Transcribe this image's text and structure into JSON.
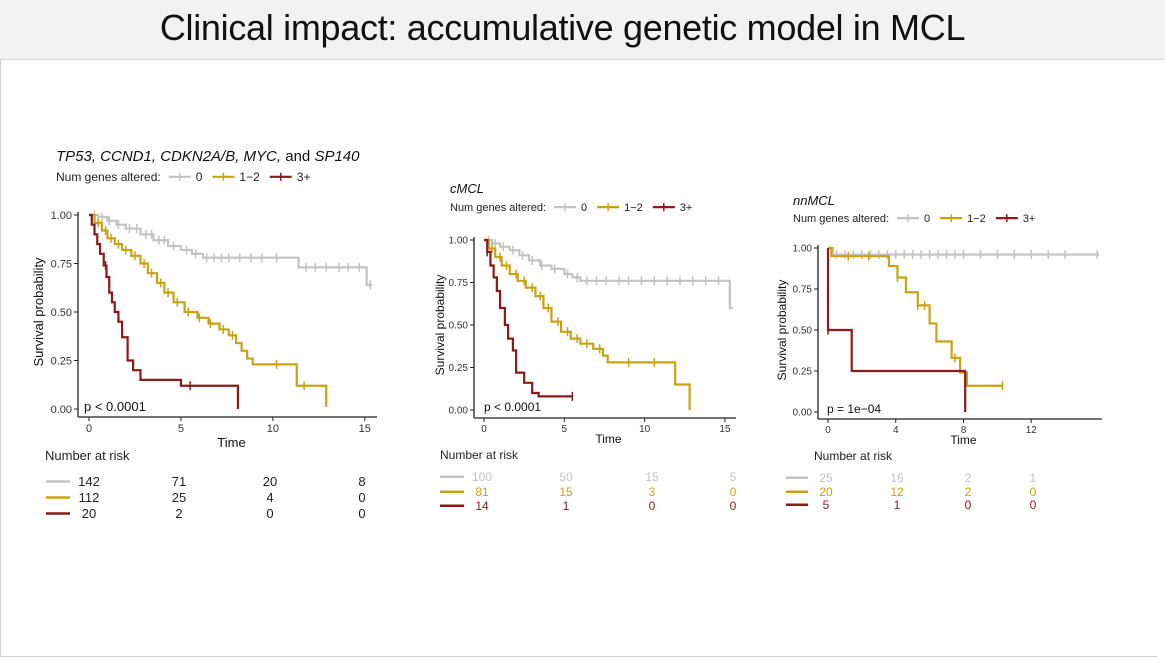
{
  "slide": {
    "title": "Clinical impact: accumulative genetic model in MCL"
  },
  "colors": {
    "g0": "#c3c3c3",
    "g12": "#c8a414",
    "g3": "#8b1a1a",
    "axis": "#222222"
  },
  "chart_data": [
    {
      "type": "line",
      "id": "all",
      "title_parts": [
        {
          "t": "TP53, CCND1, CDKN2A/B, MYC,",
          "italic": true
        },
        {
          "t": " and ",
          "italic": false
        },
        {
          "t": "SP140",
          "italic": true
        }
      ],
      "legend_title": "Num genes altered:",
      "legend_labels": [
        "0",
        "1−2",
        "3+"
      ],
      "xlabel": "Time",
      "ylabel": "Survival probability",
      "xlim": [
        0,
        15.5
      ],
      "ylim": [
        0,
        1
      ],
      "xticks": [
        0,
        5,
        10,
        15
      ],
      "yticks": [
        "0.00",
        "0.25",
        "0.50",
        "0.75",
        "1.00"
      ],
      "pvalue": "p < 0.0001",
      "risk_title": "Number at risk",
      "risk_times": [
        0,
        5,
        10,
        15
      ],
      "risk_rows": [
        [
          "142",
          "71",
          "20",
          "8"
        ],
        [
          "112",
          "25",
          "4",
          "0"
        ],
        [
          "20",
          "2",
          "0",
          "0"
        ]
      ],
      "series": [
        {
          "name": "0",
          "color_key": "g0",
          "steps": [
            [
              0,
              1
            ],
            [
              0.5,
              0.99
            ],
            [
              1,
              0.97
            ],
            [
              1.5,
              0.95
            ],
            [
              2,
              0.93
            ],
            [
              2.8,
              0.9
            ],
            [
              3.5,
              0.87
            ],
            [
              4.3,
              0.84
            ],
            [
              5,
              0.82
            ],
            [
              5.6,
              0.8
            ],
            [
              6.2,
              0.78
            ],
            [
              7.3,
              0.78
            ],
            [
              8,
              0.78
            ],
            [
              9,
              0.78
            ],
            [
              11.3,
              0.78
            ],
            [
              11.4,
              0.73
            ],
            [
              15,
              0.73
            ],
            [
              15.1,
              0.64
            ],
            [
              15.4,
              0.64
            ]
          ],
          "censors": [
            0.3,
            0.7,
            1.1,
            1.6,
            2.2,
            2.6,
            3.1,
            3.4,
            3.8,
            4.1,
            4.6,
            5.3,
            5.8,
            6.4,
            6.8,
            7.2,
            7.6,
            8.2,
            8.8,
            9.4,
            10.2,
            11.8,
            12.3,
            12.9,
            13.6,
            14.1,
            14.7,
            15.3
          ]
        },
        {
          "name": "1−2",
          "color_key": "g12",
          "steps": [
            [
              0,
              1
            ],
            [
              0.3,
              0.96
            ],
            [
              0.7,
              0.92
            ],
            [
              1,
              0.88
            ],
            [
              1.4,
              0.85
            ],
            [
              1.8,
              0.82
            ],
            [
              2.3,
              0.79
            ],
            [
              2.8,
              0.75
            ],
            [
              3.2,
              0.7
            ],
            [
              3.7,
              0.65
            ],
            [
              4.1,
              0.6
            ],
            [
              4.6,
              0.55
            ],
            [
              5.2,
              0.5
            ],
            [
              5.9,
              0.47
            ],
            [
              6.5,
              0.44
            ],
            [
              7.1,
              0.41
            ],
            [
              7.6,
              0.38
            ],
            [
              8,
              0.34
            ],
            [
              8.3,
              0.3
            ],
            [
              8.6,
              0.26
            ],
            [
              8.9,
              0.23
            ],
            [
              11.2,
              0.23
            ],
            [
              11.3,
              0.12
            ],
            [
              12.5,
              0.12
            ],
            [
              12.9,
              0.01
            ]
          ],
          "censors": [
            0.5,
            0.9,
            1.2,
            1.6,
            2,
            2.5,
            3,
            3.4,
            3.9,
            4.3,
            4.8,
            5.4,
            6,
            6.6,
            7.3,
            7.8,
            10.2,
            11.7
          ]
        },
        {
          "name": "3+",
          "color_key": "g3",
          "steps": [
            [
              0,
              1
            ],
            [
              0.15,
              0.95
            ],
            [
              0.3,
              0.9
            ],
            [
              0.45,
              0.85
            ],
            [
              0.6,
              0.8
            ],
            [
              0.8,
              0.74
            ],
            [
              0.95,
              0.68
            ],
            [
              1.1,
              0.6
            ],
            [
              1.25,
              0.55
            ],
            [
              1.4,
              0.5
            ],
            [
              1.6,
              0.45
            ],
            [
              1.8,
              0.37
            ],
            [
              2.1,
              0.25
            ],
            [
              2.4,
              0.2
            ],
            [
              2.8,
              0.15
            ],
            [
              4.5,
              0.15
            ],
            [
              5,
              0.12
            ],
            [
              8.1,
              0.12
            ],
            [
              8.1,
              0
            ]
          ],
          "censors": [
            0.9,
            5.5
          ]
        }
      ]
    },
    {
      "type": "line",
      "id": "cmcl",
      "title_parts": [
        {
          "t": "cMCL",
          "italic": true
        }
      ],
      "legend_title": "Num genes altered:",
      "legend_labels": [
        "0",
        "1−2",
        "3+"
      ],
      "xlabel": "Time",
      "ylabel": "Survival probability",
      "xlim": [
        0,
        15.5
      ],
      "ylim": [
        0,
        1
      ],
      "xticks": [
        0,
        5,
        10,
        15
      ],
      "yticks": [
        "0.00",
        "0.25",
        "0.50",
        "0.75",
        "1.00"
      ],
      "pvalue": "p < 0.0001",
      "risk_title": "Number at risk",
      "risk_times": [
        0,
        5,
        10,
        15
      ],
      "risk_rows": [
        [
          "100",
          "50",
          "15",
          "5"
        ],
        [
          "81",
          "15",
          "3",
          "0"
        ],
        [
          "14",
          "1",
          "0",
          "0"
        ]
      ],
      "series": [
        {
          "name": "0",
          "color_key": "g0",
          "steps": [
            [
              0,
              1
            ],
            [
              0.5,
              0.98
            ],
            [
              1,
              0.96
            ],
            [
              1.6,
              0.94
            ],
            [
              2.2,
              0.91
            ],
            [
              2.8,
              0.88
            ],
            [
              3.5,
              0.85
            ],
            [
              4.2,
              0.83
            ],
            [
              5,
              0.8
            ],
            [
              5.5,
              0.78
            ],
            [
              6,
              0.76
            ],
            [
              8,
              0.76
            ],
            [
              10,
              0.76
            ],
            [
              15.2,
              0.76
            ],
            [
              15.3,
              0.6
            ],
            [
              15.5,
              0.6
            ]
          ],
          "censors": [
            0.3,
            0.7,
            1.2,
            1.8,
            2.4,
            3,
            3.6,
            4.4,
            5.2,
            5.8,
            6.4,
            7,
            7.6,
            8.4,
            9,
            9.8,
            10.6,
            11.4,
            12.2,
            13,
            13.8,
            14.6
          ]
        },
        {
          "name": "1−2",
          "color_key": "g12",
          "steps": [
            [
              0,
              1
            ],
            [
              0.3,
              0.95
            ],
            [
              0.7,
              0.9
            ],
            [
              1.1,
              0.85
            ],
            [
              1.6,
              0.8
            ],
            [
              2.1,
              0.76
            ],
            [
              2.6,
              0.72
            ],
            [
              3.2,
              0.67
            ],
            [
              3.7,
              0.6
            ],
            [
              4.2,
              0.52
            ],
            [
              4.8,
              0.46
            ],
            [
              5.4,
              0.42
            ],
            [
              6,
              0.39
            ],
            [
              6.8,
              0.36
            ],
            [
              7.4,
              0.32
            ],
            [
              7.7,
              0.28
            ],
            [
              11.8,
              0.28
            ],
            [
              11.9,
              0.15
            ],
            [
              12.6,
              0.15
            ],
            [
              12.8,
              0
            ]
          ],
          "censors": [
            0.5,
            1,
            1.4,
            2,
            2.5,
            3,
            3.5,
            4,
            4.6,
            5.2,
            5.8,
            6.4,
            7.2,
            9,
            10.6
          ]
        },
        {
          "name": "3+",
          "color_key": "g3",
          "steps": [
            [
              0,
              1
            ],
            [
              0.2,
              0.93
            ],
            [
              0.4,
              0.85
            ],
            [
              0.6,
              0.78
            ],
            [
              0.8,
              0.7
            ],
            [
              1,
              0.6
            ],
            [
              1.3,
              0.5
            ],
            [
              1.5,
              0.42
            ],
            [
              1.8,
              0.35
            ],
            [
              2,
              0.22
            ],
            [
              2.5,
              0.16
            ],
            [
              3,
              0.1
            ],
            [
              3.4,
              0.08
            ],
            [
              5.5,
              0.08
            ]
          ],
          "censors": [
            0.2,
            5.5
          ]
        }
      ]
    },
    {
      "type": "line",
      "id": "nnmcl",
      "title_parts": [
        {
          "t": "nnMCL",
          "italic": true
        }
      ],
      "legend_title": "Num genes altered:",
      "legend_labels": [
        "0",
        "1−2",
        "3+"
      ],
      "xlabel": "Time",
      "ylabel": "Survival probability",
      "xlim": [
        0,
        16
      ],
      "ylim": [
        0,
        1
      ],
      "xticks": [
        0,
        4,
        8,
        12
      ],
      "yticks": [
        "0.00",
        "0.25",
        "0.50",
        "0.75",
        "1.00"
      ],
      "pvalue": "p = 1e−04",
      "risk_title": "Number at risk",
      "risk_times": [
        0,
        4,
        8,
        12
      ],
      "risk_rows": [
        [
          "25",
          "16",
          "2",
          "1"
        ],
        [
          "20",
          "12",
          "2",
          "0"
        ],
        [
          "5",
          "1",
          "0",
          "0"
        ]
      ],
      "series": [
        {
          "name": "0",
          "color_key": "g0",
          "steps": [
            [
              0,
              1
            ],
            [
              0.3,
              0.96
            ],
            [
              16,
              0.96
            ]
          ],
          "censors": [
            0.5,
            1,
            1.5,
            2,
            2.5,
            3,
            3.5,
            4,
            4.5,
            5,
            5.5,
            6,
            6.5,
            7,
            7.5,
            8,
            9,
            10,
            11,
            12,
            13,
            14,
            15.9
          ]
        },
        {
          "name": "1−2",
          "color_key": "g12",
          "steps": [
            [
              0,
              1
            ],
            [
              0.2,
              0.95
            ],
            [
              3.2,
              0.95
            ],
            [
              3.6,
              0.89
            ],
            [
              4.1,
              0.82
            ],
            [
              4.6,
              0.73
            ],
            [
              5.3,
              0.65
            ],
            [
              6,
              0.54
            ],
            [
              6.4,
              0.43
            ],
            [
              7.3,
              0.33
            ],
            [
              7.8,
              0.24
            ],
            [
              8.2,
              0.16
            ],
            [
              10.3,
              0.16
            ]
          ],
          "censors": [
            1.2,
            2.4,
            4.1,
            5.3,
            5.7,
            7.5,
            10.3
          ]
        },
        {
          "name": "3+",
          "color_key": "g3",
          "steps": [
            [
              0,
              1
            ],
            [
              0,
              0.5
            ],
            [
              1.4,
              0.5
            ],
            [
              1.4,
              0.25
            ],
            [
              8,
              0.25
            ],
            [
              8.1,
              0
            ]
          ],
          "censors": [
            0
          ]
        }
      ]
    }
  ]
}
